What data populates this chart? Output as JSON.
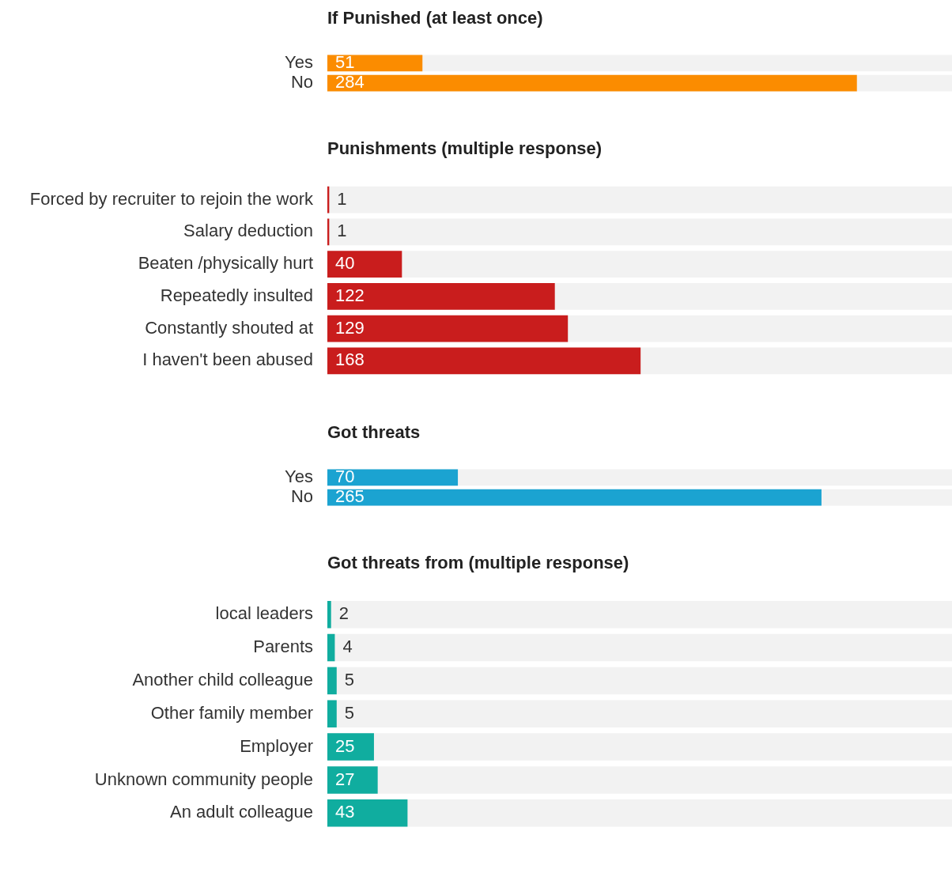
{
  "chart_data": [
    {
      "type": "bar",
      "orientation": "horizontal",
      "title": "If Punished (at least once)",
      "categories": [
        "Yes",
        "No"
      ],
      "values": [
        51,
        284
      ],
      "color": "#fb8c00",
      "xlim": [
        0,
        335
      ],
      "tick_labels": "y",
      "data_labels": true
    },
    {
      "type": "bar",
      "orientation": "horizontal",
      "title": "Punishments (multiple response)",
      "categories": [
        "Forced by recruiter to rejoin the work",
        "Salary deduction",
        "Beaten /physically hurt",
        "Repeatedly insulted",
        "Constantly shouted at",
        "I haven't been abused"
      ],
      "values": [
        1,
        1,
        40,
        122,
        129,
        168
      ],
      "color": "#c91d1d",
      "xlim": [
        0,
        335
      ],
      "tick_labels": "y",
      "data_labels": true
    },
    {
      "type": "bar",
      "orientation": "horizontal",
      "title": "Got threats",
      "categories": [
        "Yes",
        "No"
      ],
      "values": [
        70,
        265
      ],
      "color": "#1ba3d1",
      "xlim": [
        0,
        335
      ],
      "tick_labels": "y",
      "data_labels": true
    },
    {
      "type": "bar",
      "orientation": "horizontal",
      "title": "Got threats from (multiple response)",
      "categories": [
        "local leaders",
        "Parents",
        "Another child colleague",
        "Other family member",
        "Employer",
        "Unknown community people",
        "An adult colleague"
      ],
      "values": [
        2,
        4,
        5,
        5,
        25,
        27,
        43
      ],
      "color": "#10ad9f",
      "xlim": [
        0,
        335
      ],
      "tick_labels": "y",
      "data_labels": true
    }
  ]
}
